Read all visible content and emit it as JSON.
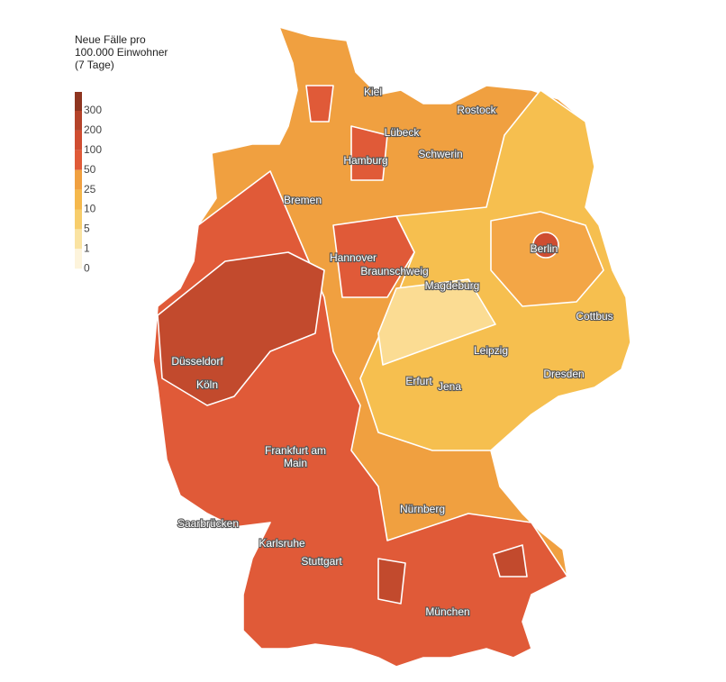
{
  "legend": {
    "title": [
      "Neue Fälle pro",
      "100.000 Einwohner",
      "(7 Tage)"
    ],
    "ticks": [
      300,
      200,
      100,
      50,
      25,
      10,
      5,
      1,
      0
    ],
    "colors": [
      "#8e3520",
      "#b4432a",
      "#cf4d31",
      "#e05a38",
      "#f0a040",
      "#f5b84c",
      "#f7cd6b",
      "#fae3a2",
      "#fdf4dc"
    ]
  },
  "cities": [
    "Kiel",
    "Rostock",
    "Lübeck",
    "Schwerin",
    "Hamburg",
    "Bremen",
    "Berlin",
    "Hannover",
    "Braunschweig",
    "Magdeburg",
    "Cottbus",
    "Düsseldorf",
    "Leipzig",
    "Köln",
    "Dresden",
    "Erfurt",
    "Jena",
    [
      "Frankfurt am",
      "Main"
    ],
    "Nürnberg",
    "Saarbrücken",
    "Karlsruhe",
    "Stuttgart",
    "München"
  ]
}
